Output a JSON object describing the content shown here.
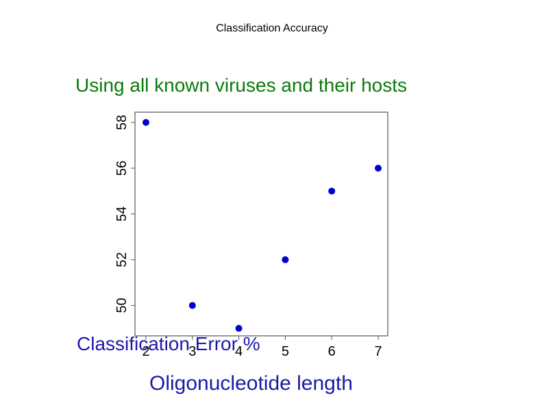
{
  "slide": {
    "title": "Classification Accuracy",
    "subtitle": "Using all known viruses and their hosts",
    "subtitle_color": "#0a7a0a",
    "label_color": "#1a1aa8"
  },
  "chart_data": {
    "type": "scatter",
    "title": "",
    "xlabel": "Oligonucleotide length",
    "ylabel": "Classification Error %",
    "x": [
      2,
      3,
      4,
      5,
      6,
      7
    ],
    "y": [
      58,
      50,
      49,
      52,
      55,
      56
    ],
    "xticks": [
      "2",
      "3",
      "4",
      "5",
      "6",
      "7"
    ],
    "yticks": [
      "50",
      "52",
      "54",
      "56",
      "58"
    ],
    "xlim": [
      2,
      7
    ],
    "ylim": [
      49,
      58
    ],
    "point_color": "#0000d6",
    "grid": false
  }
}
